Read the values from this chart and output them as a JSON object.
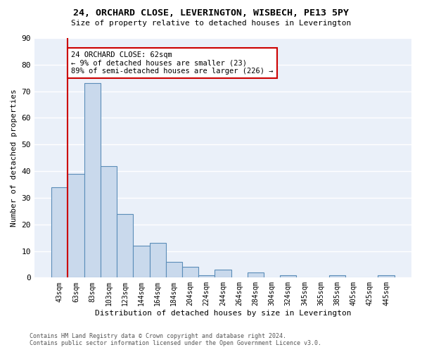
{
  "title": "24, ORCHARD CLOSE, LEVERINGTON, WISBECH, PE13 5PY",
  "subtitle": "Size of property relative to detached houses in Leverington",
  "xlabel": "Distribution of detached houses by size in Leverington",
  "ylabel": "Number of detached properties",
  "categories": [
    "43sqm",
    "63sqm",
    "83sqm",
    "103sqm",
    "123sqm",
    "144sqm",
    "164sqm",
    "184sqm",
    "204sqm",
    "224sqm",
    "244sqm",
    "264sqm",
    "284sqm",
    "304sqm",
    "324sqm",
    "345sqm",
    "365sqm",
    "385sqm",
    "405sqm",
    "425sqm",
    "445sqm"
  ],
  "values": [
    34,
    39,
    73,
    42,
    24,
    12,
    13,
    6,
    4,
    1,
    3,
    0,
    2,
    0,
    1,
    0,
    0,
    1,
    0,
    0,
    1
  ],
  "bar_color": "#c9d9ec",
  "bar_edge_color": "#5b8db8",
  "vline_color": "#cc0000",
  "annotation_text": "24 ORCHARD CLOSE: 62sqm\n← 9% of detached houses are smaller (23)\n89% of semi-detached houses are larger (226) →",
  "annotation_box_color": "#ffffff",
  "annotation_box_edge": "#cc0000",
  "ylim": [
    0,
    90
  ],
  "yticks": [
    0,
    10,
    20,
    30,
    40,
    50,
    60,
    70,
    80,
    90
  ],
  "background_color": "#eaf0f9",
  "grid_color": "#ffffff",
  "footer_line1": "Contains HM Land Registry data © Crown copyright and database right 2024.",
  "footer_line2": "Contains public sector information licensed under the Open Government Licence v3.0."
}
